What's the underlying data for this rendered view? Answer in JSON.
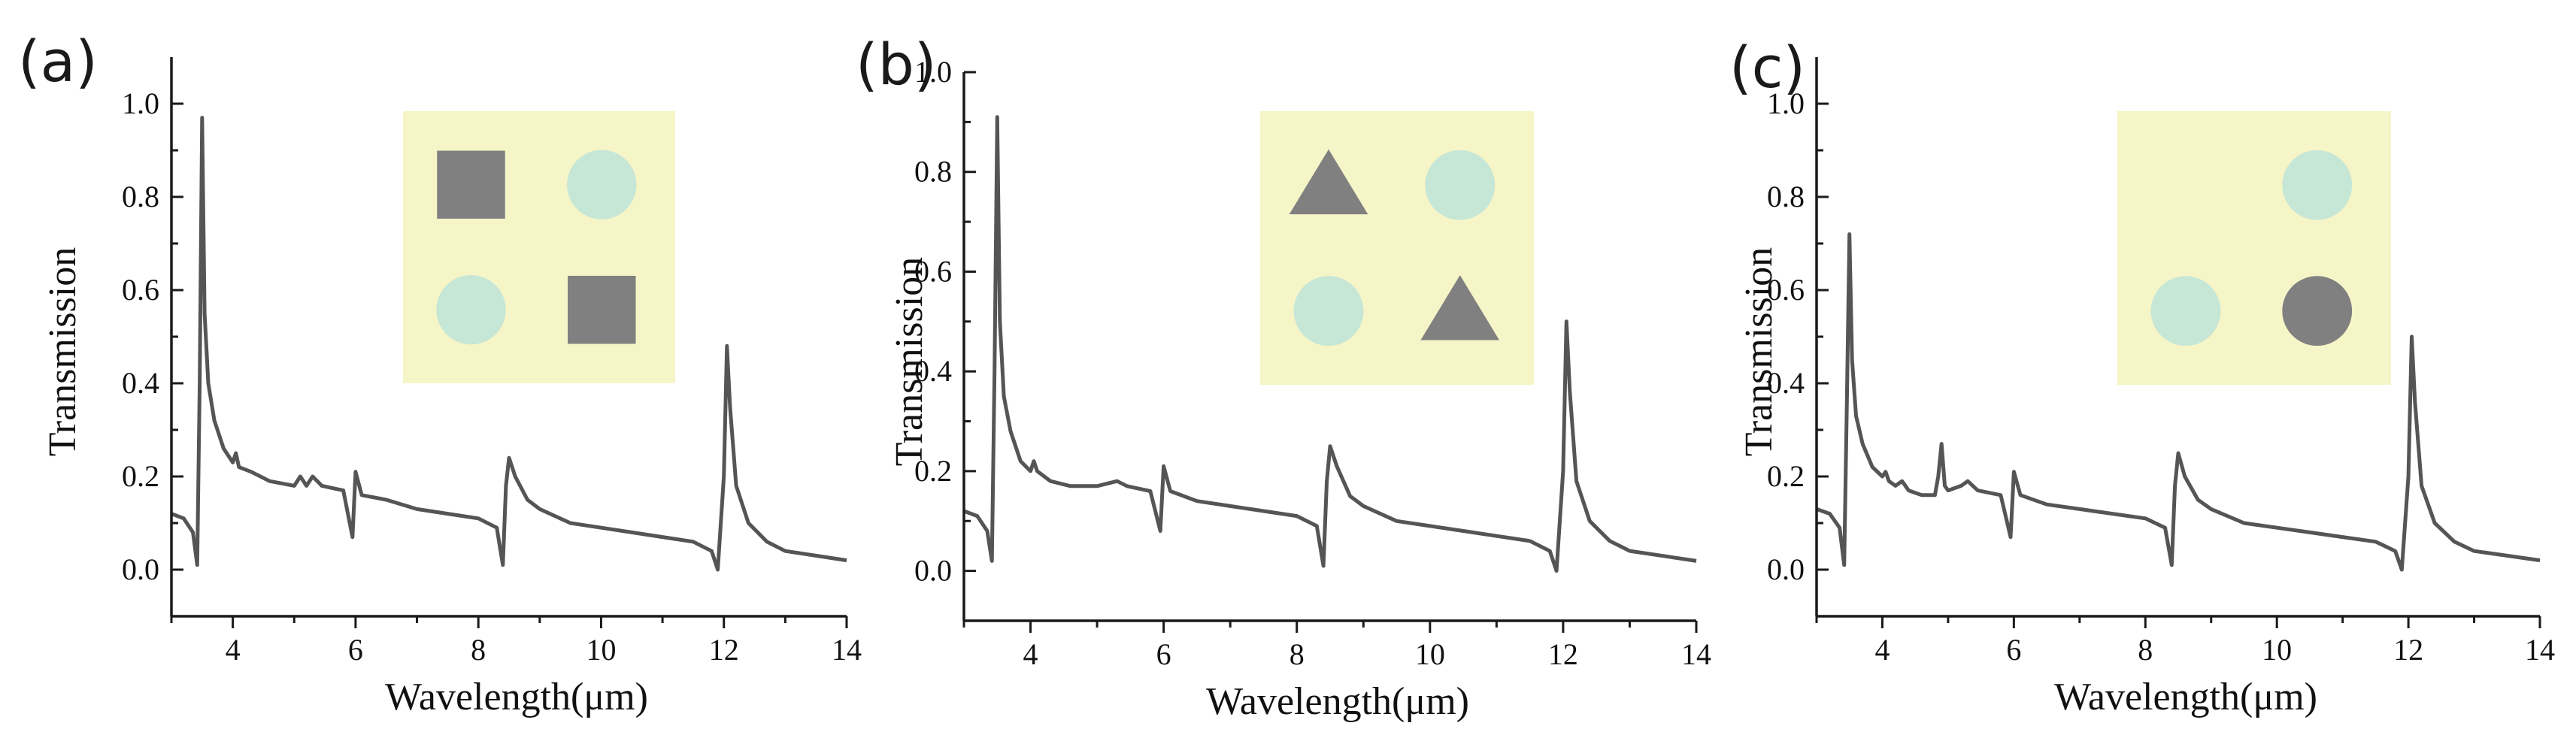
{
  "colors": {
    "line": "#555555",
    "inset_background": "#f5f5c8",
    "scatterer": "#808080",
    "dielectric_circle": "#c6e6d6"
  },
  "chart_data": [
    {
      "type": "line",
      "title": "(a)",
      "xlabel": "Wavelength(μm)",
      "ylabel": "Transmission",
      "xlim": [
        3,
        14
      ],
      "ylim": [
        -0.1,
        1.1
      ],
      "xticks": [
        4,
        6,
        8,
        10,
        12,
        14
      ],
      "xtick_labels": [
        "4",
        "6",
        "8",
        "10",
        "12",
        "14"
      ],
      "yticks": [
        0.0,
        0.2,
        0.4,
        0.6,
        0.8,
        1.0
      ],
      "ytick_labels": [
        "0.0",
        "0.2",
        "0.4",
        "0.6",
        "0.8",
        "1.0"
      ],
      "inset": {
        "description": "unit cell with square scatterers on diagonal",
        "shapes": [
          {
            "shape": "square",
            "fill": "scatterer",
            "cell": "top-left"
          },
          {
            "shape": "circle",
            "fill": "dielectric_circle",
            "cell": "top-right"
          },
          {
            "shape": "circle",
            "fill": "dielectric_circle",
            "cell": "bottom-left"
          },
          {
            "shape": "square",
            "fill": "scatterer",
            "cell": "bottom-right"
          }
        ]
      },
      "series": [
        {
          "name": "Transmission",
          "points": [
            [
              3.0,
              0.12
            ],
            [
              3.2,
              0.11
            ],
            [
              3.35,
              0.08
            ],
            [
              3.42,
              0.01
            ],
            [
              3.46,
              0.4
            ],
            [
              3.5,
              0.97
            ],
            [
              3.54,
              0.55
            ],
            [
              3.6,
              0.4
            ],
            [
              3.7,
              0.32
            ],
            [
              3.85,
              0.26
            ],
            [
              4.0,
              0.23
            ],
            [
              4.05,
              0.25
            ],
            [
              4.1,
              0.22
            ],
            [
              4.3,
              0.21
            ],
            [
              4.6,
              0.19
            ],
            [
              5.0,
              0.18
            ],
            [
              5.1,
              0.2
            ],
            [
              5.2,
              0.18
            ],
            [
              5.3,
              0.2
            ],
            [
              5.45,
              0.18
            ],
            [
              5.8,
              0.17
            ],
            [
              5.95,
              0.07
            ],
            [
              6.0,
              0.21
            ],
            [
              6.1,
              0.16
            ],
            [
              6.5,
              0.15
            ],
            [
              7.0,
              0.13
            ],
            [
              7.5,
              0.12
            ],
            [
              8.0,
              0.11
            ],
            [
              8.3,
              0.09
            ],
            [
              8.4,
              0.01
            ],
            [
              8.45,
              0.18
            ],
            [
              8.5,
              0.24
            ],
            [
              8.6,
              0.2
            ],
            [
              8.8,
              0.15
            ],
            [
              9.0,
              0.13
            ],
            [
              9.5,
              0.1
            ],
            [
              10.0,
              0.09
            ],
            [
              10.5,
              0.08
            ],
            [
              11.0,
              0.07
            ],
            [
              11.5,
              0.06
            ],
            [
              11.8,
              0.04
            ],
            [
              11.9,
              0.0
            ],
            [
              12.0,
              0.2
            ],
            [
              12.05,
              0.48
            ],
            [
              12.1,
              0.35
            ],
            [
              12.2,
              0.18
            ],
            [
              12.4,
              0.1
            ],
            [
              12.7,
              0.06
            ],
            [
              13.0,
              0.04
            ],
            [
              13.5,
              0.03
            ],
            [
              14.0,
              0.02
            ]
          ]
        }
      ]
    },
    {
      "type": "line",
      "title": "(b)",
      "xlabel": "Wavelength(μm)",
      "ylabel": "Transmission",
      "xlim": [
        3,
        14
      ],
      "ylim": [
        -0.1,
        1.0
      ],
      "xticks": [
        4,
        6,
        8,
        10,
        12,
        14
      ],
      "xtick_labels": [
        "4",
        "6",
        "8",
        "10",
        "12",
        "14"
      ],
      "yticks": [
        0.0,
        0.2,
        0.4,
        0.6,
        0.8,
        1.0
      ],
      "ytick_labels": [
        "0.0",
        "0.2",
        "0.4",
        "0.6",
        "0.8",
        "1.0"
      ],
      "inset": {
        "description": "unit cell with triangular scatterers on diagonal",
        "shapes": [
          {
            "shape": "triangle",
            "fill": "scatterer",
            "cell": "top-left"
          },
          {
            "shape": "circle",
            "fill": "dielectric_circle",
            "cell": "top-right"
          },
          {
            "shape": "circle",
            "fill": "dielectric_circle",
            "cell": "bottom-left"
          },
          {
            "shape": "triangle",
            "fill": "scatterer",
            "cell": "bottom-right"
          }
        ]
      },
      "series": [
        {
          "name": "Transmission",
          "points": [
            [
              3.0,
              0.12
            ],
            [
              3.2,
              0.11
            ],
            [
              3.35,
              0.08
            ],
            [
              3.42,
              0.02
            ],
            [
              3.46,
              0.4
            ],
            [
              3.5,
              0.91
            ],
            [
              3.54,
              0.5
            ],
            [
              3.6,
              0.35
            ],
            [
              3.7,
              0.28
            ],
            [
              3.85,
              0.22
            ],
            [
              4.0,
              0.2
            ],
            [
              4.05,
              0.22
            ],
            [
              4.1,
              0.2
            ],
            [
              4.3,
              0.18
            ],
            [
              4.6,
              0.17
            ],
            [
              5.0,
              0.17
            ],
            [
              5.3,
              0.18
            ],
            [
              5.45,
              0.17
            ],
            [
              5.8,
              0.16
            ],
            [
              5.95,
              0.08
            ],
            [
              6.0,
              0.21
            ],
            [
              6.1,
              0.16
            ],
            [
              6.5,
              0.14
            ],
            [
              7.0,
              0.13
            ],
            [
              7.5,
              0.12
            ],
            [
              8.0,
              0.11
            ],
            [
              8.3,
              0.09
            ],
            [
              8.4,
              0.01
            ],
            [
              8.45,
              0.18
            ],
            [
              8.5,
              0.25
            ],
            [
              8.6,
              0.21
            ],
            [
              8.8,
              0.15
            ],
            [
              9.0,
              0.13
            ],
            [
              9.5,
              0.1
            ],
            [
              10.0,
              0.09
            ],
            [
              10.5,
              0.08
            ],
            [
              11.0,
              0.07
            ],
            [
              11.5,
              0.06
            ],
            [
              11.8,
              0.04
            ],
            [
              11.9,
              0.0
            ],
            [
              12.0,
              0.2
            ],
            [
              12.05,
              0.5
            ],
            [
              12.1,
              0.36
            ],
            [
              12.2,
              0.18
            ],
            [
              12.4,
              0.1
            ],
            [
              12.7,
              0.06
            ],
            [
              13.0,
              0.04
            ],
            [
              13.5,
              0.03
            ],
            [
              14.0,
              0.02
            ]
          ]
        }
      ]
    },
    {
      "type": "line",
      "title": "(c)",
      "xlabel": "Wavelength(μm)",
      "ylabel": "Transmission",
      "xlim": [
        3,
        14
      ],
      "ylim": [
        -0.1,
        1.1
      ],
      "xticks": [
        4,
        6,
        8,
        10,
        12,
        14
      ],
      "xtick_labels": [
        "4",
        "6",
        "8",
        "10",
        "12",
        "14"
      ],
      "yticks": [
        0.0,
        0.2,
        0.4,
        0.6,
        0.8,
        1.0
      ],
      "ytick_labels": [
        "0.0",
        "0.2",
        "0.4",
        "0.6",
        "0.8",
        "1.0"
      ],
      "inset": {
        "description": "unit cell with a single dark circular scatterer",
        "shapes": [
          {
            "shape": "circle",
            "fill": "dielectric_circle",
            "cell": "top-right"
          },
          {
            "shape": "circle",
            "fill": "dielectric_circle",
            "cell": "bottom-left"
          },
          {
            "shape": "circle",
            "fill": "scatterer",
            "cell": "bottom-right"
          }
        ]
      },
      "series": [
        {
          "name": "Transmission",
          "points": [
            [
              3.0,
              0.13
            ],
            [
              3.2,
              0.12
            ],
            [
              3.35,
              0.09
            ],
            [
              3.42,
              0.01
            ],
            [
              3.46,
              0.35
            ],
            [
              3.5,
              0.72
            ],
            [
              3.54,
              0.45
            ],
            [
              3.6,
              0.33
            ],
            [
              3.7,
              0.27
            ],
            [
              3.85,
              0.22
            ],
            [
              4.0,
              0.2
            ],
            [
              4.05,
              0.21
            ],
            [
              4.1,
              0.19
            ],
            [
              4.2,
              0.18
            ],
            [
              4.3,
              0.19
            ],
            [
              4.4,
              0.17
            ],
            [
              4.6,
              0.16
            ],
            [
              4.8,
              0.16
            ],
            [
              4.85,
              0.2
            ],
            [
              4.9,
              0.27
            ],
            [
              4.95,
              0.18
            ],
            [
              5.0,
              0.17
            ],
            [
              5.2,
              0.18
            ],
            [
              5.3,
              0.19
            ],
            [
              5.45,
              0.17
            ],
            [
              5.8,
              0.16
            ],
            [
              5.95,
              0.07
            ],
            [
              6.0,
              0.21
            ],
            [
              6.1,
              0.16
            ],
            [
              6.5,
              0.14
            ],
            [
              7.0,
              0.13
            ],
            [
              7.5,
              0.12
            ],
            [
              8.0,
              0.11
            ],
            [
              8.3,
              0.09
            ],
            [
              8.4,
              0.01
            ],
            [
              8.45,
              0.18
            ],
            [
              8.5,
              0.25
            ],
            [
              8.6,
              0.2
            ],
            [
              8.8,
              0.15
            ],
            [
              9.0,
              0.13
            ],
            [
              9.5,
              0.1
            ],
            [
              10.0,
              0.09
            ],
            [
              10.5,
              0.08
            ],
            [
              11.0,
              0.07
            ],
            [
              11.5,
              0.06
            ],
            [
              11.8,
              0.04
            ],
            [
              11.9,
              0.0
            ],
            [
              12.0,
              0.2
            ],
            [
              12.05,
              0.5
            ],
            [
              12.1,
              0.36
            ],
            [
              12.2,
              0.18
            ],
            [
              12.4,
              0.1
            ],
            [
              12.7,
              0.06
            ],
            [
              13.0,
              0.04
            ],
            [
              13.5,
              0.03
            ],
            [
              14.0,
              0.02
            ]
          ]
        }
      ]
    }
  ]
}
